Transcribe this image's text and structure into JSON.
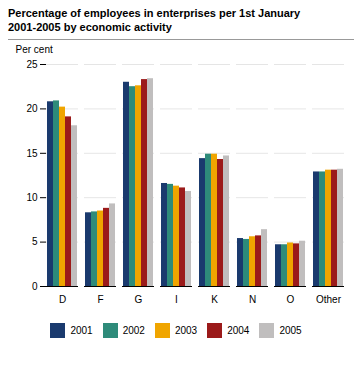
{
  "chart_data": {
    "type": "bar",
    "title": "Percentage of employees in enterprises per 1st January",
    "subtitle": "2001-2005 by economic activity",
    "y_label": "Per cent",
    "categories": [
      "D",
      "F",
      "G",
      "I",
      "K",
      "N",
      "O",
      "Other"
    ],
    "series": [
      {
        "name": "2001",
        "color": "#1a3a6e",
        "values": [
          20.8,
          8.3,
          23.0,
          11.6,
          14.4,
          5.4,
          4.7,
          12.9
        ]
      },
      {
        "name": "2002",
        "color": "#2e8b7a",
        "values": [
          20.9,
          8.4,
          22.5,
          11.5,
          14.9,
          5.3,
          4.7,
          12.9
        ]
      },
      {
        "name": "2003",
        "color": "#f0a500",
        "values": [
          20.2,
          8.5,
          22.6,
          11.3,
          14.9,
          5.6,
          4.9,
          13.1
        ]
      },
      {
        "name": "2004",
        "color": "#9b1a1a",
        "values": [
          19.1,
          8.8,
          23.3,
          11.1,
          14.3,
          5.7,
          4.8,
          13.1
        ]
      },
      {
        "name": "2005",
        "color": "#c0bebe",
        "values": [
          18.1,
          9.3,
          23.4,
          10.7,
          14.7,
          6.4,
          5.1,
          13.2
        ]
      }
    ],
    "ylim": [
      0,
      25
    ],
    "yticks": [
      0,
      5,
      10,
      15,
      20,
      25
    ],
    "grid": true,
    "legend": "bottom"
  }
}
